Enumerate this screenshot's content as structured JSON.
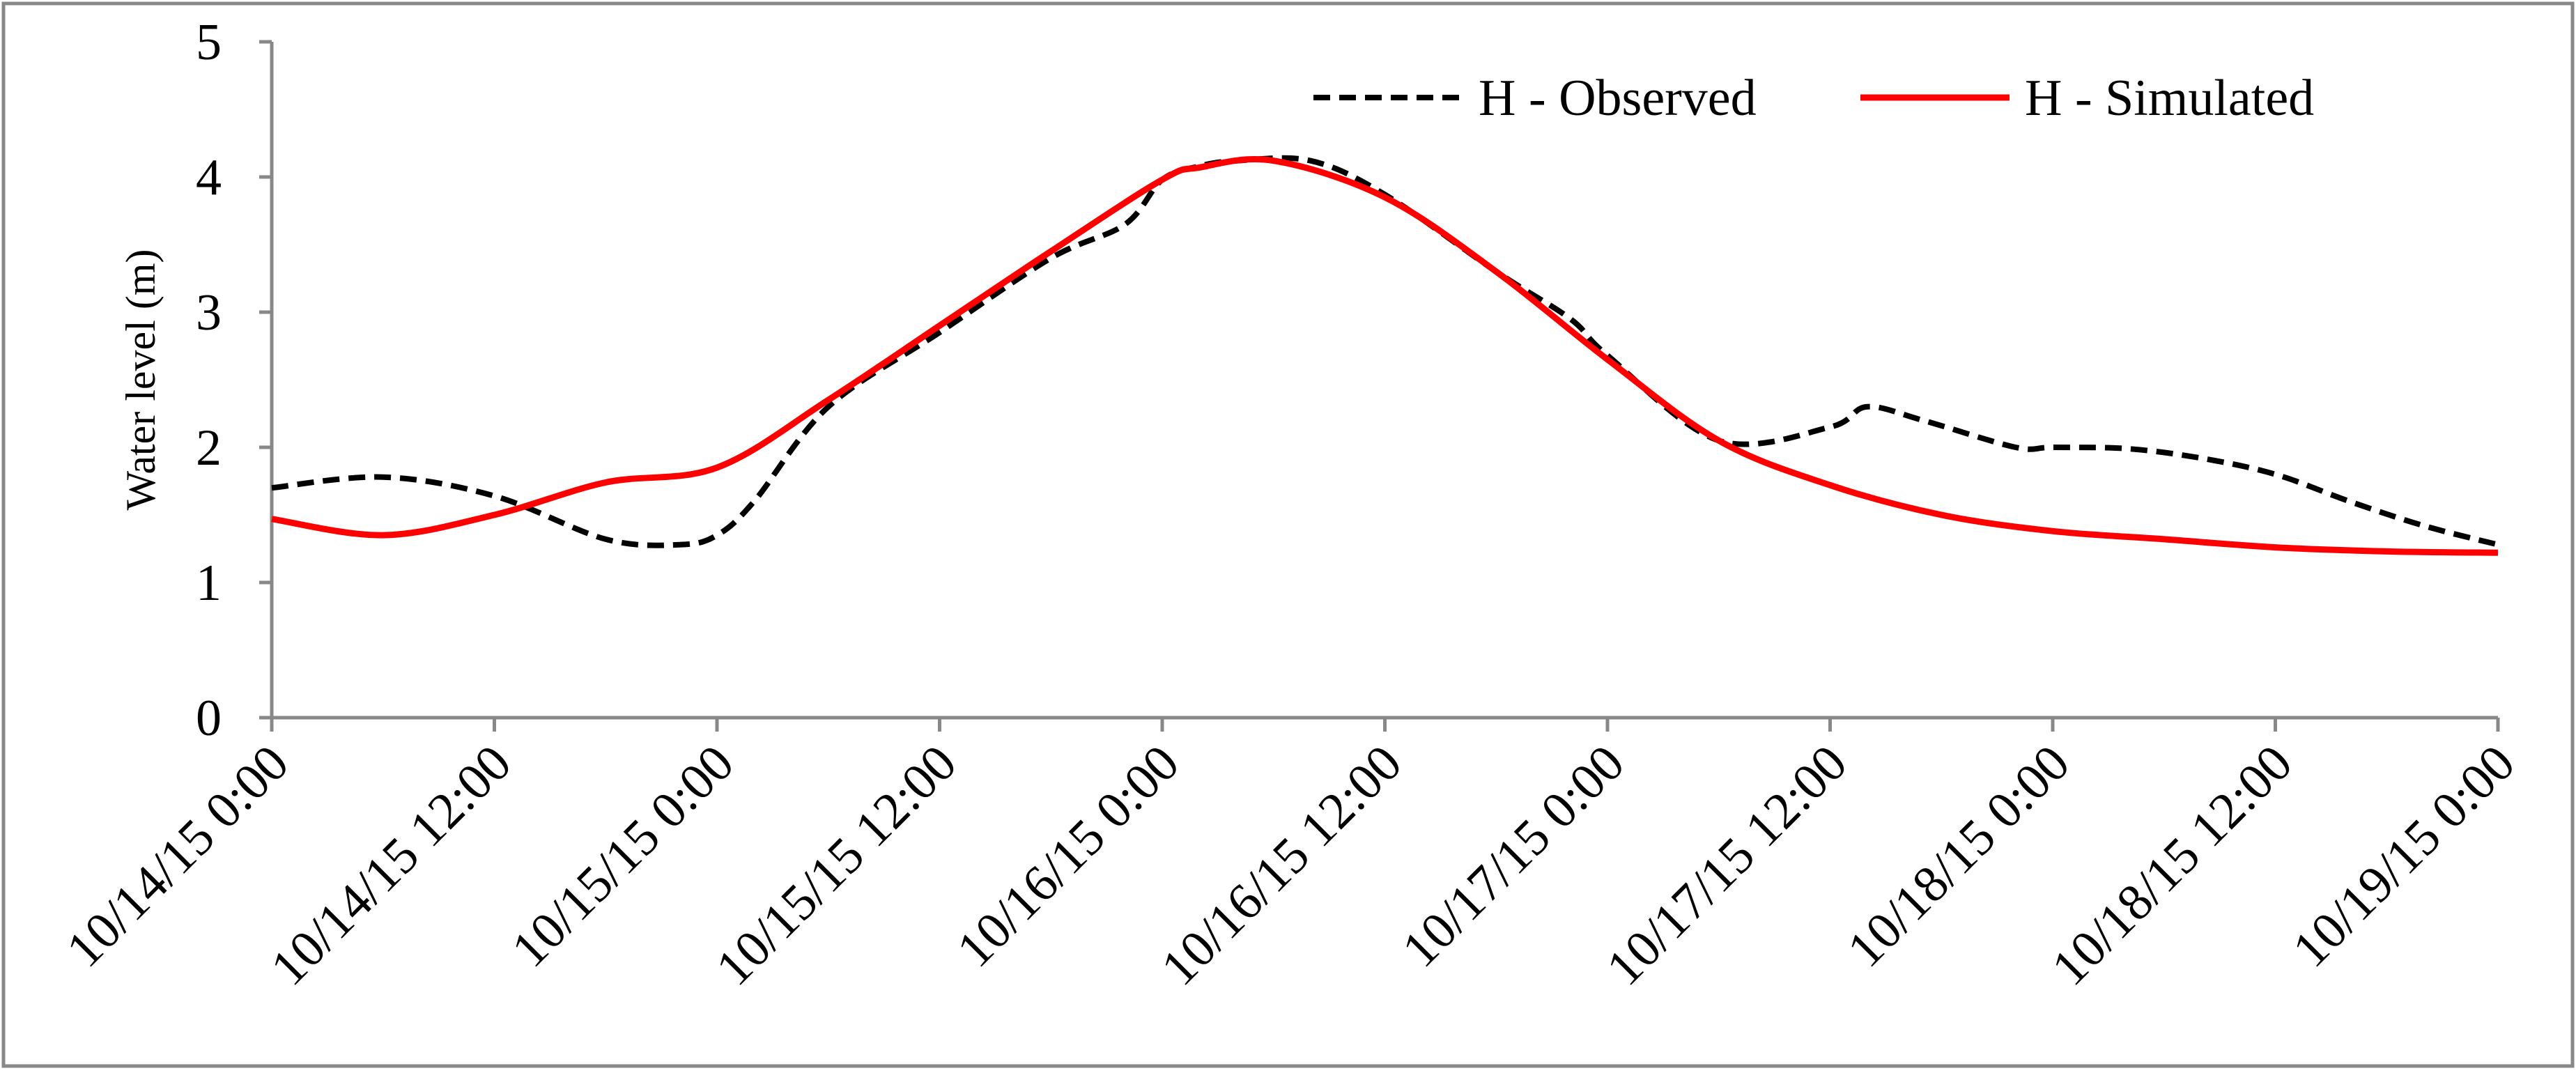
{
  "chart_data": {
    "type": "line",
    "title": "",
    "xlabel": "",
    "ylabel": "Water level (m)",
    "ylim": [
      0,
      5
    ],
    "yticks": [
      "0",
      "1",
      "2",
      "3",
      "4",
      "5"
    ],
    "xlim_hours": [
      0,
      120
    ],
    "x_tick_labels": [
      "10/14/15 0:00",
      "10/14/15 12:00",
      "10/15/15 0:00",
      "10/15/15 12:00",
      "10/16/15 0:00",
      "10/16/15 12:00",
      "10/17/15 0:00",
      "10/17/15 12:00",
      "10/18/15 0:00",
      "10/18/15 12:00",
      "10/19/15 0:00"
    ],
    "legend_position": "top-right",
    "grid": false,
    "series": [
      {
        "name": "H - Observed",
        "color": "#000000",
        "style": "dashed",
        "x_hours": [
          0,
          6,
          12,
          18,
          22,
          24,
          26,
          30,
          36,
          42,
          46,
          48,
          50,
          52,
          56,
          60,
          66,
          70,
          72,
          78,
          84,
          86,
          89,
          94,
          96,
          100,
          104,
          108,
          112,
          116,
          120
        ],
        "y": [
          1.7,
          1.78,
          1.64,
          1.32,
          1.28,
          1.35,
          1.6,
          2.3,
          2.85,
          3.4,
          3.65,
          3.98,
          4.08,
          4.12,
          4.12,
          3.87,
          3.3,
          2.95,
          2.68,
          2.05,
          2.15,
          2.3,
          2.2,
          2.0,
          2.0,
          1.99,
          1.92,
          1.8,
          1.6,
          1.42,
          1.28
        ]
      },
      {
        "name": "H - Simulated",
        "color": "#ff0000",
        "style": "solid",
        "x_hours": [
          0,
          6,
          12,
          18,
          24,
          30,
          36,
          42,
          48,
          50,
          54,
          60,
          66,
          72,
          78,
          84,
          90,
          96,
          102,
          108,
          114,
          120
        ],
        "y": [
          1.47,
          1.35,
          1.5,
          1.74,
          1.85,
          2.35,
          2.9,
          3.45,
          3.98,
          4.07,
          4.12,
          3.85,
          3.3,
          2.65,
          2.05,
          1.72,
          1.5,
          1.38,
          1.32,
          1.26,
          1.23,
          1.22
        ]
      }
    ]
  }
}
